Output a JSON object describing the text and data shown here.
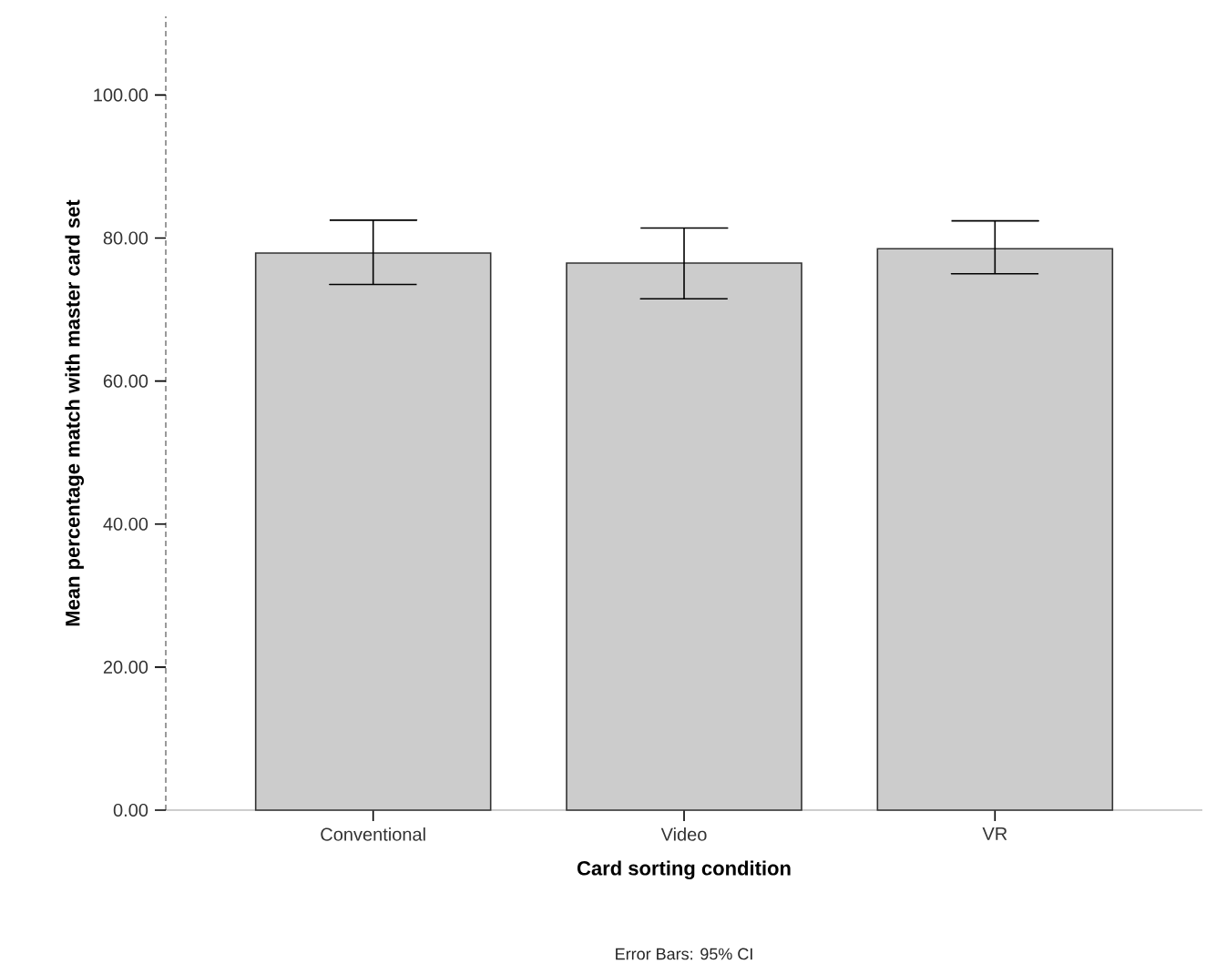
{
  "chart_data": {
    "type": "bar",
    "xlabel": "Card sorting condition",
    "ylabel": "Mean percentage match with master card set",
    "categories": [
      "Conventional",
      "Video",
      "VR"
    ],
    "values": [
      77.9,
      76.5,
      78.5
    ],
    "errors": [
      [
        73.5,
        82.5
      ],
      [
        71.5,
        81.4
      ],
      [
        75.0,
        82.4
      ]
    ],
    "color": "#cccccc",
    "ylim": [
      0,
      111
    ],
    "yticks": [
      {
        "value": 0,
        "label": "0.00"
      },
      {
        "value": 20,
        "label": "20.00"
      },
      {
        "value": 40,
        "label": "40.00"
      },
      {
        "value": 60,
        "label": "60.00"
      },
      {
        "value": 80,
        "label": "80.00"
      },
      {
        "value": 100,
        "label": "100.00"
      }
    ],
    "annotations": [
      "Error Bars: 95% CI"
    ]
  }
}
